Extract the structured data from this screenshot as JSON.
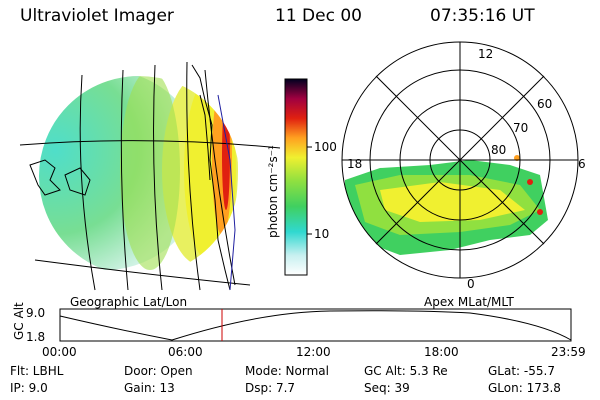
{
  "header": {
    "instrument": "Ultraviolet Imager",
    "date": "11 Dec 00",
    "time": "07:35:16 UT"
  },
  "colorbar": {
    "unit_label": "photon cm⁻²s⁻¹",
    "tick_100": "100",
    "tick_10": "10"
  },
  "polar": {
    "label_12": "12",
    "label_18": "18",
    "label_6": "6",
    "label_0": "0",
    "lat_60": "60",
    "lat_70": "70",
    "lat_80": "80"
  },
  "panels": {
    "left_caption": "Geographic Lat/Lon",
    "right_caption": "Apex MLat/MLT"
  },
  "altitude_plot": {
    "axis_label": "GC Alt",
    "y_top": "9.0",
    "y_bottom": "1.8",
    "ticks": [
      "00:00",
      "06:00",
      "12:00",
      "18:00",
      "23:59"
    ],
    "current_fraction": 0.317,
    "cursor_color": "#cc0000"
  },
  "status": {
    "flt": "Flt: LBHL",
    "ip": "IP:  9.0",
    "door": "Door: Open",
    "gain": "Gain: 13",
    "mode": "Mode: Normal",
    "dsp": "Dsp:     7.7",
    "gcalt": "GC Alt: 5.3 Re",
    "seq": "Seq: 39",
    "glat": "GLat: -55.7",
    "glon": "GLon: 173.8"
  }
}
